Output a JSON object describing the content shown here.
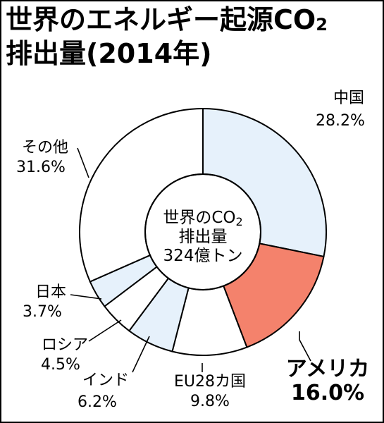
{
  "title": {
    "line1_main": "世界のエネルギー起源CO",
    "line1_sub": "2",
    "line2": "排出量(2014年)"
  },
  "colors": {
    "highlight": "#f4826c",
    "light": "#e6f1fb",
    "plain": "#ffffff",
    "stroke": "#000000"
  },
  "chart_data": {
    "type": "pie",
    "title": "世界のエネルギー起源CO2排出量(2014年)",
    "center_label": {
      "line1_main": "世界のCO",
      "line1_sub": "2",
      "line2": "排出量",
      "line3": "324億トン"
    },
    "slices": [
      {
        "name": "中国",
        "value": 28.2,
        "label": "28.2%",
        "fill": "light"
      },
      {
        "name": "アメリカ",
        "value": 16.0,
        "label": "16.0%",
        "fill": "highlight"
      },
      {
        "name": "EU28カ国",
        "value": 9.8,
        "label": "9.8%",
        "fill": "plain"
      },
      {
        "name": "インド",
        "value": 6.2,
        "label": "6.2%",
        "fill": "light"
      },
      {
        "name": "ロシア",
        "value": 4.5,
        "label": "4.5%",
        "fill": "plain"
      },
      {
        "name": "日本",
        "value": 3.7,
        "label": "3.7%",
        "fill": "light"
      },
      {
        "name": "その他",
        "value": 31.6,
        "label": "31.6%",
        "fill": "plain"
      }
    ]
  }
}
